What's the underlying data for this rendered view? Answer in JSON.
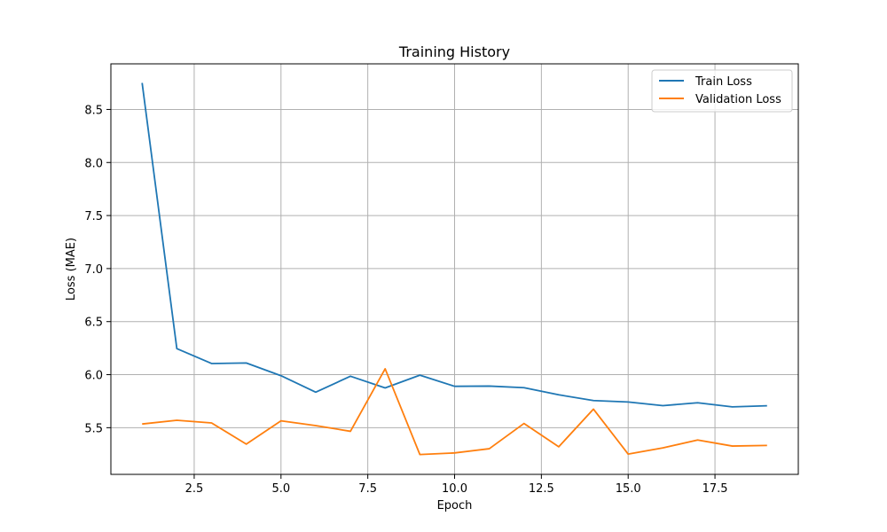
{
  "chart_data": {
    "type": "line",
    "title": "Training History",
    "xlabel": "Epoch",
    "ylabel": "Loss (MAE)",
    "x": [
      1,
      2,
      3,
      4,
      5,
      6,
      7,
      8,
      9,
      10,
      11,
      12,
      13,
      14,
      15,
      16,
      17,
      18,
      19
    ],
    "series": [
      {
        "name": "Train Loss",
        "color": "#1f77b4",
        "values": [
          8.75,
          6.245,
          6.105,
          6.11,
          5.99,
          5.835,
          5.985,
          5.875,
          5.995,
          5.89,
          5.892,
          5.877,
          5.81,
          5.756,
          5.742,
          5.708,
          5.735,
          5.696,
          5.707
        ]
      },
      {
        "name": "Validation Loss",
        "color": "#ff7f0e",
        "values": [
          5.535,
          5.57,
          5.545,
          5.345,
          5.565,
          5.52,
          5.466,
          6.055,
          5.247,
          5.262,
          5.302,
          5.54,
          5.32,
          5.675,
          5.251,
          5.31,
          5.384,
          5.327,
          5.333
        ]
      }
    ],
    "xlim": [
      0.1,
      19.9
    ],
    "ylim": [
      5.06,
      8.93
    ],
    "xticks": [
      2.5,
      5.0,
      7.5,
      10.0,
      12.5,
      15.0,
      17.5
    ],
    "xtick_labels": [
      "2.5",
      "5.0",
      "7.5",
      "10.0",
      "12.5",
      "15.0",
      "17.5"
    ],
    "yticks": [
      5.5,
      6.0,
      6.5,
      7.0,
      7.5,
      8.0,
      8.5
    ],
    "ytick_labels": [
      "5.5",
      "6.0",
      "6.5",
      "7.0",
      "7.5",
      "8.0",
      "8.5"
    ],
    "grid": true,
    "legend_position": "top-right"
  }
}
